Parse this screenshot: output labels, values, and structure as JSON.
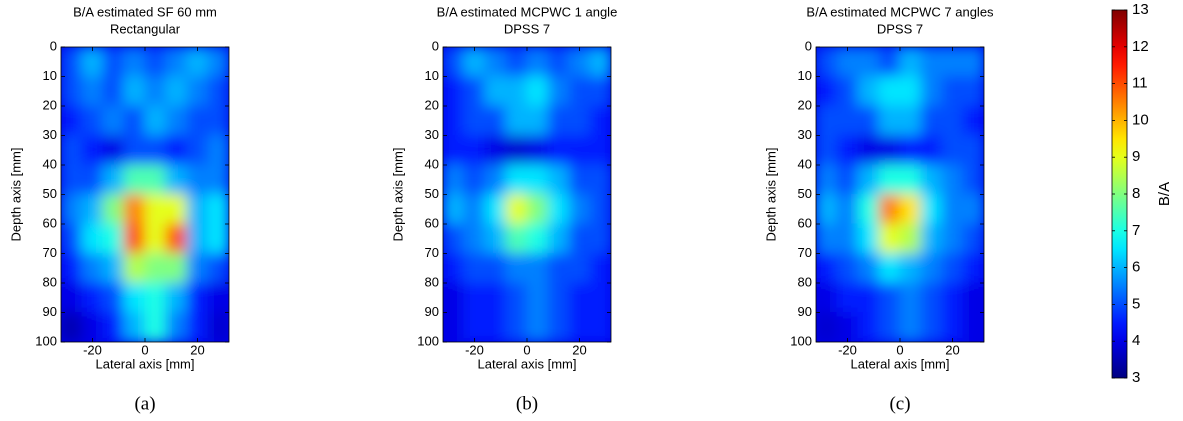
{
  "chart_data": [
    {
      "type": "heatmap",
      "title": "B/A estimated SF 60 mm",
      "subtitle": "Rectangular",
      "xlabel": "Lateral axis [mm]",
      "ylabel": "Depth axis [mm]",
      "caption": "(a)",
      "colormap": "jet",
      "zlim": [
        3,
        13
      ],
      "y_inverted": true,
      "xlim": [
        -32,
        32
      ],
      "ylim": [
        0,
        100
      ],
      "xticks": [
        -20,
        0,
        20
      ],
      "yticks": [
        0,
        10,
        20,
        30,
        40,
        50,
        60,
        70,
        80,
        90,
        100
      ],
      "x": [
        -28,
        -20,
        -12,
        -4,
        4,
        12,
        20,
        28
      ],
      "y": [
        5,
        15,
        25,
        35,
        45,
        55,
        65,
        75,
        85,
        95
      ],
      "z": [
        [
          5,
          6,
          5,
          5.5,
          5,
          5.5,
          6,
          5.5
        ],
        [
          5,
          5.5,
          5,
          6,
          5.5,
          6,
          5.5,
          5
        ],
        [
          4.5,
          5,
          5.5,
          5,
          6,
          5.5,
          5,
          5
        ],
        [
          5,
          4.5,
          4,
          5,
          5,
          4.5,
          5,
          5.5
        ],
        [
          5,
          5,
          6,
          7.5,
          7.5,
          6,
          5.5,
          5.5
        ],
        [
          5.5,
          6,
          8,
          10.5,
          9,
          9,
          6,
          6.5
        ],
        [
          5,
          6.5,
          7,
          11,
          9,
          11,
          6,
          6.5
        ],
        [
          4.5,
          5.5,
          6,
          8.5,
          8,
          8,
          5.5,
          5
        ],
        [
          4,
          4.5,
          5,
          6.5,
          7,
          6,
          4.5,
          4
        ],
        [
          3.5,
          4,
          4.5,
          6,
          7,
          5.5,
          4.5,
          3.8
        ]
      ]
    },
    {
      "type": "heatmap",
      "title": "B/A estimated MCPWC 1 angle",
      "subtitle": "DPSS 7",
      "xlabel": "Lateral axis [mm]",
      "ylabel": "Depth axis [mm]",
      "caption": "(b)",
      "colormap": "jet",
      "zlim": [
        3,
        13
      ],
      "y_inverted": true,
      "xlim": [
        -32,
        32
      ],
      "ylim": [
        0,
        100
      ],
      "xticks": [
        -20,
        0,
        20
      ],
      "yticks": [
        0,
        10,
        20,
        30,
        40,
        50,
        60,
        70,
        80,
        90,
        100
      ],
      "x": [
        -28,
        -20,
        -12,
        -4,
        4,
        12,
        20,
        28
      ],
      "y": [
        5,
        15,
        25,
        35,
        45,
        55,
        65,
        75,
        85,
        95
      ],
      "z": [
        [
          5,
          6,
          5.5,
          5,
          5.5,
          5,
          5.5,
          6
        ],
        [
          4.5,
          5,
          6,
          6,
          6.5,
          5.5,
          5,
          5
        ],
        [
          4.5,
          5,
          5,
          6,
          6,
          5,
          5,
          4.5
        ],
        [
          4.5,
          4.5,
          4,
          3.8,
          4,
          4.5,
          4.5,
          4.5
        ],
        [
          5.5,
          5,
          5.5,
          6.5,
          6.5,
          6,
          5,
          5
        ],
        [
          6,
          5.5,
          6.5,
          9,
          8,
          6.5,
          5.5,
          5
        ],
        [
          5,
          5.5,
          6,
          7.5,
          7,
          6,
          5,
          5
        ],
        [
          4.5,
          5,
          5,
          5.5,
          5.5,
          5,
          5,
          4.5
        ],
        [
          4,
          4.5,
          4.5,
          5,
          5.5,
          5,
          4.5,
          4.5
        ],
        [
          4,
          4.5,
          4.5,
          5,
          5.5,
          5,
          4.5,
          4.5
        ]
      ]
    },
    {
      "type": "heatmap",
      "title": "B/A estimated MCPWC 7 angles",
      "subtitle": "DPSS 7",
      "xlabel": "Lateral axis [mm]",
      "ylabel": "Depth axis [mm]",
      "caption": "(c)",
      "colormap": "jet",
      "zlim": [
        3,
        13
      ],
      "y_inverted": true,
      "xlim": [
        -32,
        32
      ],
      "ylim": [
        0,
        100
      ],
      "xticks": [
        -20,
        0,
        20
      ],
      "yticks": [
        0,
        10,
        20,
        30,
        40,
        50,
        60,
        70,
        80,
        90,
        100
      ],
      "x": [
        -28,
        -20,
        -12,
        -4,
        4,
        12,
        20,
        28
      ],
      "y": [
        5,
        15,
        25,
        35,
        45,
        55,
        65,
        75,
        85,
        95
      ],
      "z": [
        [
          5,
          5.5,
          5.5,
          5,
          6,
          5.5,
          5.5,
          5.5
        ],
        [
          4.5,
          5,
          6,
          6.5,
          6.5,
          5.5,
          5,
          5
        ],
        [
          5,
          5,
          5,
          6,
          6,
          5,
          5,
          4.5
        ],
        [
          5,
          4.5,
          4,
          4,
          4.5,
          4.5,
          5,
          5
        ],
        [
          5.5,
          5,
          6,
          7,
          7,
          6,
          5.5,
          5
        ],
        [
          6,
          5.5,
          7,
          10.5,
          9.5,
          6.5,
          5.5,
          5.5
        ],
        [
          5.5,
          5.5,
          6.5,
          9,
          8.5,
          6,
          5.5,
          5
        ],
        [
          4.5,
          5,
          5.5,
          6.5,
          6,
          5.5,
          5,
          4.5
        ],
        [
          4,
          4.5,
          4.5,
          5,
          5.5,
          5,
          4.5,
          4
        ],
        [
          3.8,
          4,
          4.5,
          5,
          5.5,
          5,
          4.5,
          4
        ]
      ]
    },
    {
      "type": "colorbar",
      "label": "B/A",
      "colormap": "jet",
      "zlim": [
        3,
        13
      ],
      "ticks": [
        3,
        4,
        5,
        6,
        7,
        8,
        9,
        10,
        11,
        12,
        13
      ]
    }
  ]
}
